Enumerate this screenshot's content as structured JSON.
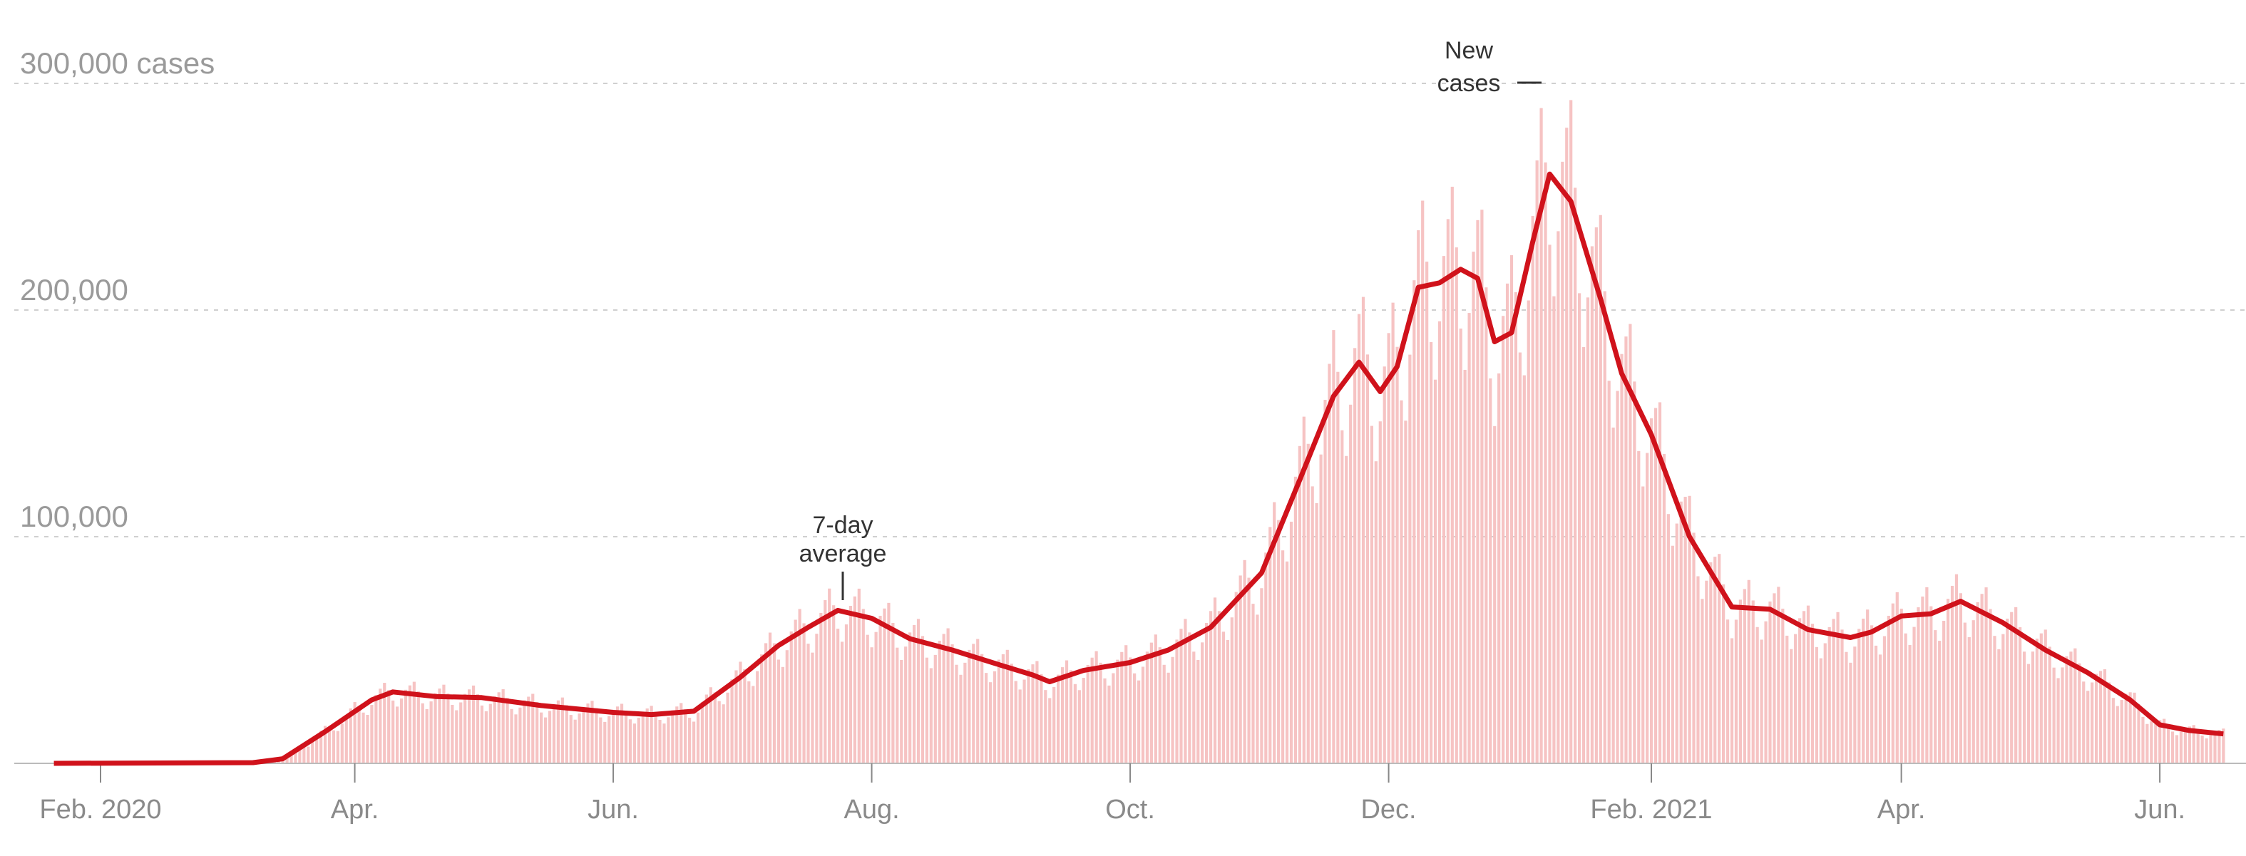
{
  "chart_data": {
    "type": "bar+line",
    "title": "",
    "ylabel": "cases",
    "ylim": [
      0,
      300000
    ],
    "grid": true,
    "y_ticks": [
      {
        "value": 300000,
        "label": "300,000 cases"
      },
      {
        "value": 200000,
        "label": "200,000"
      },
      {
        "value": 100000,
        "label": "100,000"
      }
    ],
    "x_ticks": [
      {
        "date": "2020-02-01",
        "label": "Feb. 2020"
      },
      {
        "date": "2020-04-01",
        "label": "Apr."
      },
      {
        "date": "2020-06-01",
        "label": "Jun."
      },
      {
        "date": "2020-08-01",
        "label": "Aug."
      },
      {
        "date": "2020-10-01",
        "label": "Oct."
      },
      {
        "date": "2020-12-01",
        "label": "Dec."
      },
      {
        "date": "2021-02-01",
        "label": "Feb. 2021"
      },
      {
        "date": "2021-04-01",
        "label": "Apr."
      },
      {
        "date": "2021-06-01",
        "label": "Jun."
      }
    ],
    "x_range": [
      "2020-01-21",
      "2021-06-16"
    ],
    "series": [
      {
        "name": "7-day average",
        "type": "line",
        "color": "#d0121b",
        "points": [
          [
            "2020-01-21",
            0
          ],
          [
            "2020-03-08",
            300
          ],
          [
            "2020-03-15",
            2000
          ],
          [
            "2020-03-25",
            14000
          ],
          [
            "2020-04-05",
            28000
          ],
          [
            "2020-04-10",
            31500
          ],
          [
            "2020-04-20",
            29500
          ],
          [
            "2020-05-01",
            29000
          ],
          [
            "2020-05-15",
            25500
          ],
          [
            "2020-06-01",
            22500
          ],
          [
            "2020-06-10",
            21500
          ],
          [
            "2020-06-20",
            23000
          ],
          [
            "2020-07-01",
            38000
          ],
          [
            "2020-07-10",
            52000
          ],
          [
            "2020-07-17",
            60000
          ],
          [
            "2020-07-24",
            67500
          ],
          [
            "2020-08-01",
            64000
          ],
          [
            "2020-08-10",
            55000
          ],
          [
            "2020-08-20",
            50000
          ],
          [
            "2020-09-01",
            43000
          ],
          [
            "2020-09-08",
            39000
          ],
          [
            "2020-09-12",
            36000
          ],
          [
            "2020-09-20",
            41000
          ],
          [
            "2020-10-01",
            44500
          ],
          [
            "2020-10-10",
            50000
          ],
          [
            "2020-10-20",
            60000
          ],
          [
            "2020-11-01",
            84000
          ],
          [
            "2020-11-10",
            125000
          ],
          [
            "2020-11-18",
            162000
          ],
          [
            "2020-11-24",
            177000
          ],
          [
            "2020-11-29",
            164000
          ],
          [
            "2020-12-03",
            175000
          ],
          [
            "2020-12-08",
            210000
          ],
          [
            "2020-12-13",
            212000
          ],
          [
            "2020-12-18",
            218000
          ],
          [
            "2020-12-22",
            214000
          ],
          [
            "2020-12-26",
            186000
          ],
          [
            "2020-12-30",
            190000
          ],
          [
            "2021-01-04",
            230000
          ],
          [
            "2021-01-08",
            260000
          ],
          [
            "2021-01-13",
            248000
          ],
          [
            "2021-01-20",
            205000
          ],
          [
            "2021-01-25",
            172000
          ],
          [
            "2021-02-01",
            145000
          ],
          [
            "2021-02-10",
            100000
          ],
          [
            "2021-02-20",
            69000
          ],
          [
            "2021-03-01",
            68000
          ],
          [
            "2021-03-10",
            59000
          ],
          [
            "2021-03-20",
            55500
          ],
          [
            "2021-03-25",
            58000
          ],
          [
            "2021-04-01",
            65000
          ],
          [
            "2021-04-08",
            66000
          ],
          [
            "2021-04-15",
            71500
          ],
          [
            "2021-04-25",
            62000
          ],
          [
            "2021-05-05",
            50000
          ],
          [
            "2021-05-15",
            40000
          ],
          [
            "2021-05-25",
            28000
          ],
          [
            "2021-06-01",
            17000
          ],
          [
            "2021-06-08",
            14500
          ],
          [
            "2021-06-16",
            13000
          ]
        ]
      },
      {
        "name": "New cases",
        "type": "bar",
        "color": "#f6c3c3"
      }
    ],
    "annotations": [
      {
        "text_line1": "7-day",
        "text_line2": "average",
        "date": "2020-07-24"
      },
      {
        "text_line1": "New",
        "text_line2": "cases",
        "date": "2021-01-02"
      }
    ]
  }
}
